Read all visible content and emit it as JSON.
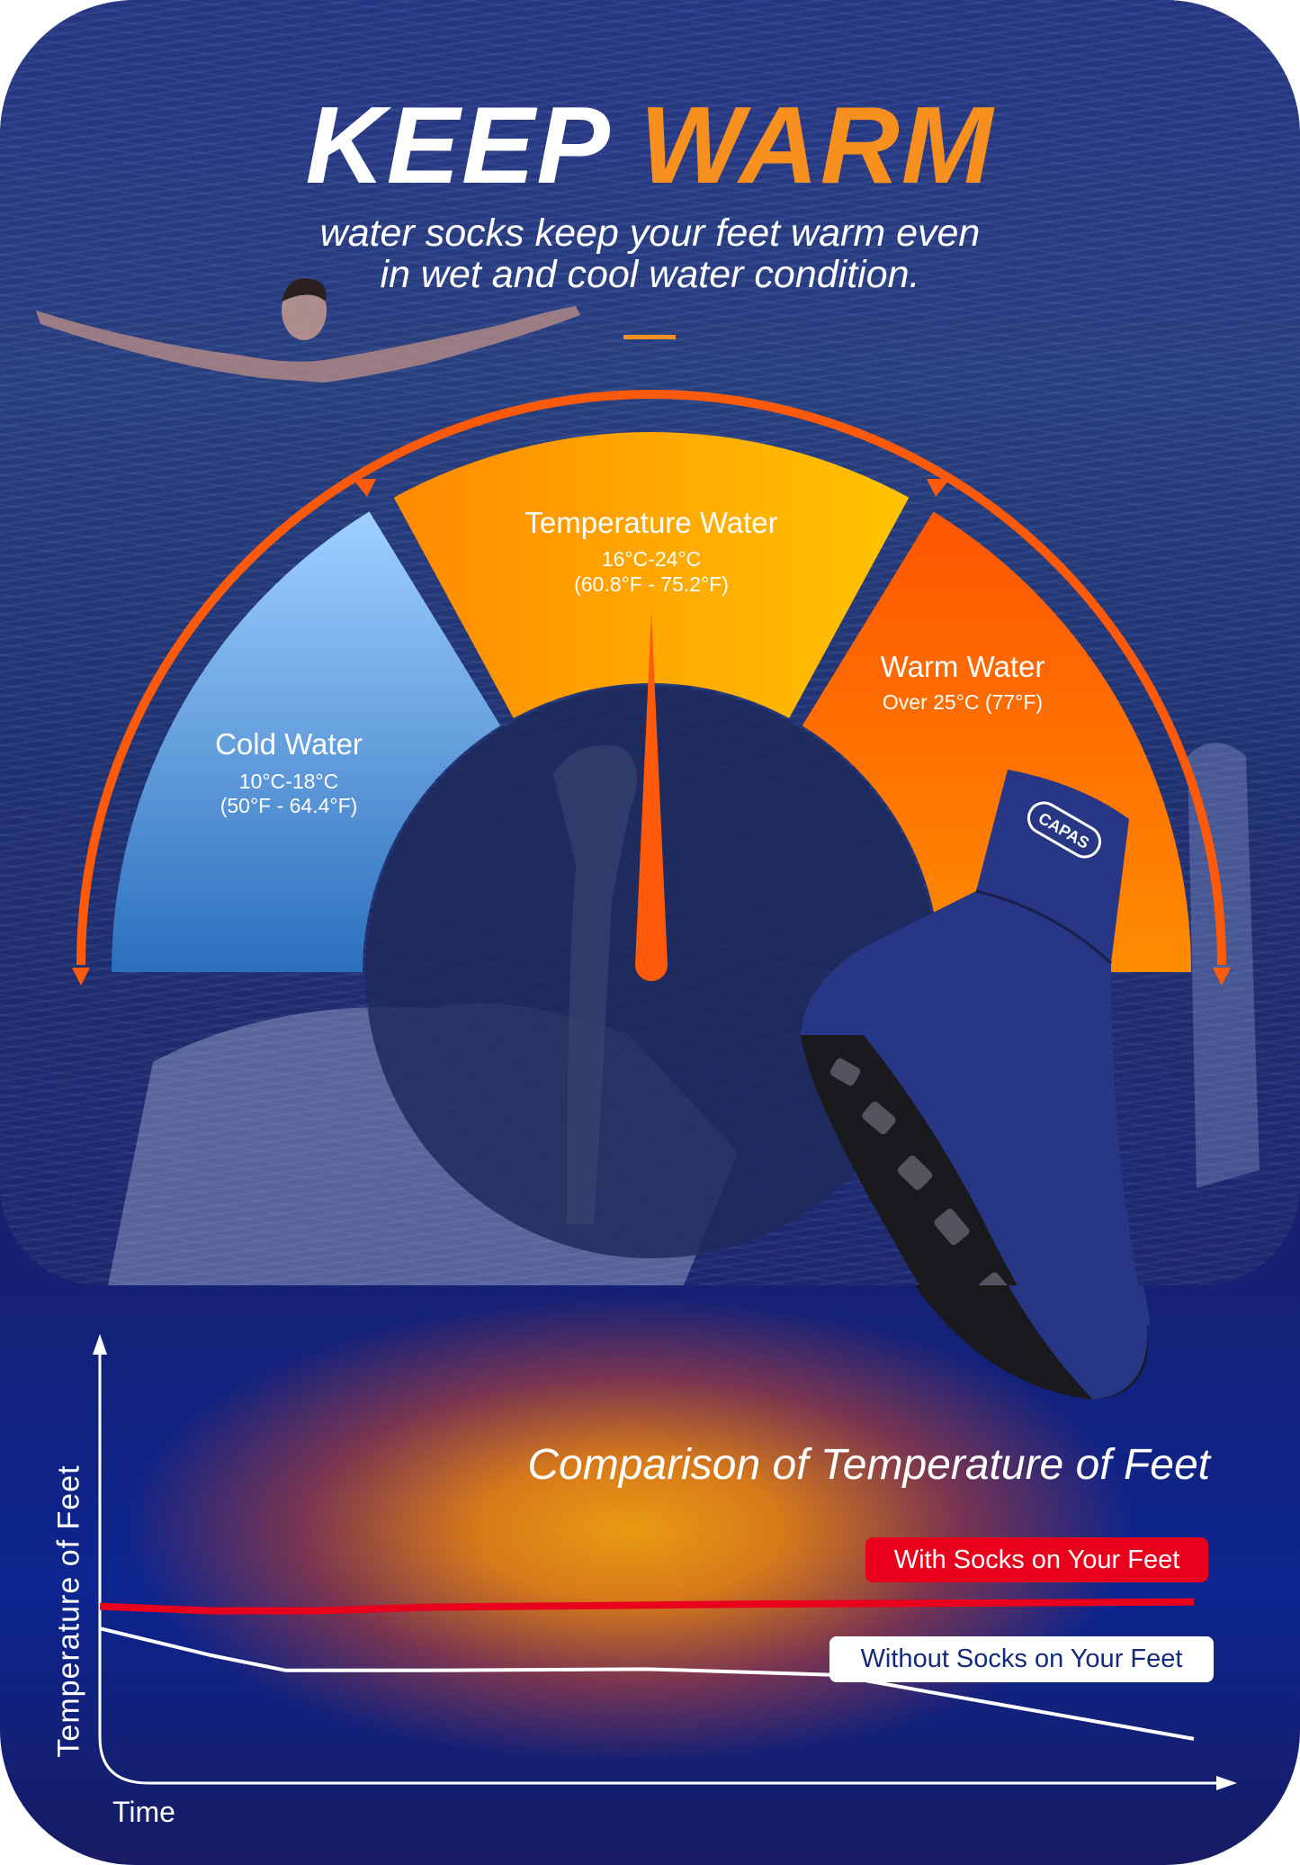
{
  "header": {
    "title_part1": "KEEP",
    "title_part2": "WARM",
    "subtitle_line1": "water socks keep your feet warm even",
    "subtitle_line2": "in wet and cool water condition."
  },
  "gauge": {
    "segments": [
      {
        "label": "Cold Water",
        "celsius": "10°C-18°C",
        "fahrenheit": "(50°F - 64.4°F)",
        "color": "#4a90e2"
      },
      {
        "label": "Temperature Water",
        "celsius": "16°C-24°C",
        "fahrenheit": "(60.8°F - 75.2°F)",
        "color": "#ffa500"
      },
      {
        "label": "Warm Water",
        "celsius": "Over 25°C (77°F)",
        "color": "#ff6a00"
      }
    ],
    "needle_segment": "Temperature Water",
    "arc_color": "#ff5a0a"
  },
  "product": {
    "brand": "CAPAS",
    "sock_color": "#283686"
  },
  "chart_data": {
    "type": "line",
    "title": "Comparison of Temperature of Feet",
    "xlabel": "Time",
    "ylabel": "Temperature of Feet",
    "grid": false,
    "legend_placement": "right, inline labels",
    "series": [
      {
        "name": "With Socks on Your Feet",
        "color": "#e8001c",
        "x": [
          0,
          10,
          20,
          30,
          60,
          100
        ],
        "y": [
          40,
          39,
          39,
          39.8,
          40.5,
          41
        ]
      },
      {
        "name": "Without Socks on Your Feet",
        "color": "#ffffff",
        "x": [
          0,
          10,
          17,
          30,
          50,
          67,
          100
        ],
        "y": [
          35,
          29,
          25.5,
          25.5,
          25.8,
          24.5,
          10
        ]
      }
    ]
  },
  "colors": {
    "accent": "#f7901e",
    "background": "#1a1f66"
  }
}
